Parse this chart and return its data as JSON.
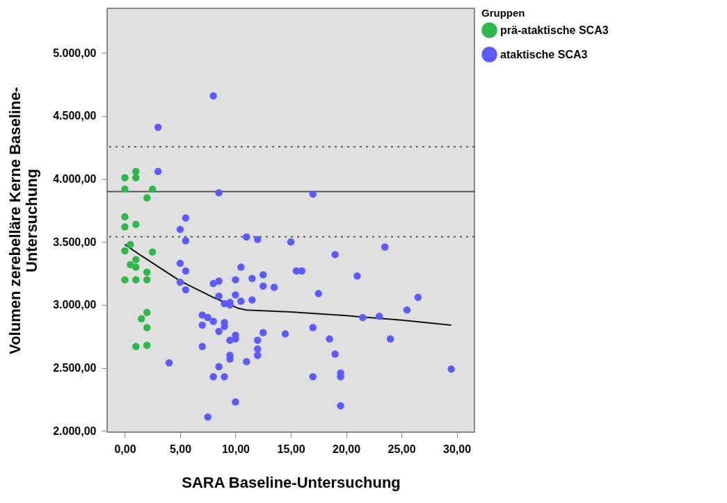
{
  "chart_data": {
    "type": "scatter",
    "xlabel": "SARA Baseline-Untersuchung",
    "ylabel": "Volumen zerebelläre Kerne Baseline-Untersuchung",
    "legend_title": "Gruppen",
    "legend": "top right",
    "grid": false,
    "marker": "circle",
    "xlim": [
      -1.6,
      31.6
    ],
    "ylim": [
      1990,
      5355
    ],
    "xticks": [
      {
        "value": 0,
        "label": "0,00"
      },
      {
        "value": 5,
        "label": "5,00"
      },
      {
        "value": 10,
        "label": "10,00"
      },
      {
        "value": 15,
        "label": "15,00"
      },
      {
        "value": 20,
        "label": "20,00"
      },
      {
        "value": 25,
        "label": "25,00"
      },
      {
        "value": 30,
        "label": "30,00"
      }
    ],
    "yticks": [
      {
        "value": 2000,
        "label": "2.000,00"
      },
      {
        "value": 2500,
        "label": "2.500,00"
      },
      {
        "value": 3000,
        "label": "3.000,00"
      },
      {
        "value": 3500,
        "label": "3.500,00"
      },
      {
        "value": 4000,
        "label": "4.000,00"
      },
      {
        "value": 4500,
        "label": "4.500,00"
      },
      {
        "value": 5000,
        "label": "5.000,00"
      }
    ],
    "ref_lines": [
      {
        "axis": "y",
        "value": 3900,
        "color": "#555555",
        "line_style": "solid"
      },
      {
        "axis": "y",
        "value": 4256,
        "color": "#555555",
        "line_style": "dotted"
      },
      {
        "axis": "y",
        "value": 3541,
        "color": "#555555",
        "line_style": "dotted"
      }
    ],
    "series": [
      {
        "name": "prä-ataktische SCA3",
        "color": "#2db84a",
        "x": [
          0,
          0,
          0,
          0,
          0,
          0,
          0.5,
          0.5,
          1,
          1,
          1,
          1,
          1,
          1,
          1,
          1.5,
          2,
          2,
          2,
          2,
          2,
          2,
          2.5,
          2.5
        ],
        "values": [
          4010,
          3920,
          3700,
          3620,
          3430,
          3200,
          3480,
          3320,
          4060,
          4010,
          3640,
          3360,
          3300,
          3200,
          2670,
          2890,
          3850,
          3260,
          3200,
          2940,
          2820,
          2680,
          3920,
          3420
        ]
      },
      {
        "name": "ataktische SCA3",
        "color": "#5b5bff",
        "x": [
          3,
          3,
          8,
          8.5,
          17,
          5,
          5.5,
          5.5,
          5,
          5.5,
          5,
          5.5,
          4,
          11,
          12,
          15,
          10.5,
          12.5,
          12.5,
          11.5,
          13.5,
          10,
          8,
          8.5,
          9,
          9.5,
          9.5,
          8.5,
          10,
          10.5,
          11.5,
          7,
          7.5,
          8,
          7,
          9,
          9,
          8.5,
          10,
          10,
          9.5,
          12,
          12,
          12,
          12.5,
          14.5,
          11,
          9.5,
          9.5,
          7,
          8.5,
          8,
          9,
          10,
          7.5,
          15.5,
          16,
          17.5,
          19,
          17,
          18.5,
          19,
          19.5,
          19.5,
          17,
          19.5,
          21,
          21.5,
          23,
          23.5,
          24,
          25.5,
          26.5,
          29.5
        ],
        "values": [
          4410,
          4060,
          4660,
          3890,
          3880,
          3600,
          3690,
          3510,
          3330,
          3270,
          3180,
          3120,
          2540,
          3540,
          3520,
          3500,
          3300,
          3240,
          3150,
          3210,
          3140,
          3200,
          3170,
          3190,
          3010,
          3020,
          3000,
          3070,
          3080,
          3030,
          3040,
          2920,
          2900,
          2870,
          2840,
          2860,
          2830,
          2790,
          2760,
          2730,
          2720,
          2720,
          2650,
          2600,
          2780,
          2770,
          2550,
          2600,
          2570,
          2670,
          2510,
          2430,
          2430,
          2230,
          2110,
          3270,
          3270,
          3090,
          3400,
          2820,
          2730,
          2610,
          2460,
          2430,
          2430,
          2200,
          3230,
          2900,
          2910,
          3460,
          2730,
          2960,
          3060,
          2490
        ]
      },
      {
        "color": "#111111",
        "type": "line",
        "marker": "none",
        "x": [
          0,
          1.5,
          5,
          8,
          10.2,
          11,
          15,
          20,
          25,
          29.5
        ],
        "values": [
          3480,
          3390,
          3190,
          3060,
          2975,
          2960,
          2945,
          2915,
          2880,
          2840
        ]
      }
    ]
  }
}
